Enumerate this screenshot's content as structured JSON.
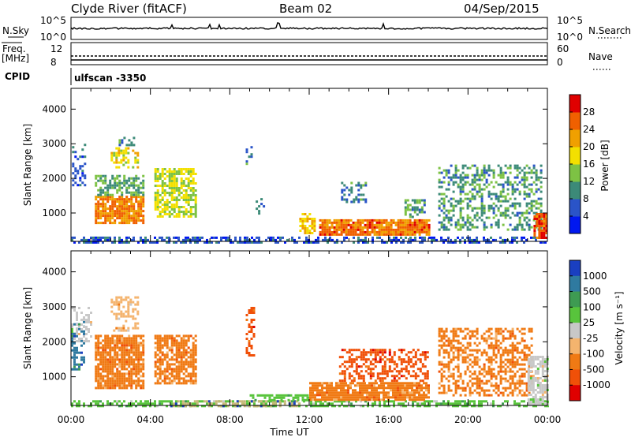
{
  "header": {
    "station": "Clyde River (fitACF)",
    "beam": "Beam 02",
    "date": "04/Sep/2015"
  },
  "top_panels": {
    "nsky_label": "N.Sky",
    "nsky_ticks": [
      "10^5",
      "10^0"
    ],
    "nsearch_label": "N.Search",
    "nsearch_ticks": [
      "10^5",
      "10^0"
    ],
    "freq_label_1": "Freq.",
    "freq_label_2": "[MHz]",
    "freq_ticks": [
      "12",
      "8"
    ],
    "nave_label": "Nave",
    "nave_ticks": [
      "60",
      "0"
    ],
    "cpid_label": "CPID",
    "cpid_value": "ulfscan -3350"
  },
  "chart_data": [
    {
      "type": "heatmap",
      "title": "",
      "xlabel": "Time UT",
      "ylabel": "Slant Range [km]",
      "xlim": [
        0,
        24
      ],
      "ylim": [
        180,
        4600
      ],
      "x_ticks": [
        "00:00",
        "04:00",
        "08:00",
        "12:00",
        "16:00",
        "20:00",
        "00:00"
      ],
      "y_ticks": [
        "1000",
        "2000",
        "3000",
        "4000"
      ],
      "y_tick_values": [
        1000,
        2000,
        3000,
        4000
      ],
      "colorbar": {
        "label": "Power [dB]",
        "ticks": [
          "4",
          "8",
          "12",
          "16",
          "20",
          "24",
          "28"
        ],
        "tick_values": [
          4,
          8,
          12,
          16,
          20,
          24,
          28
        ],
        "range": [
          0,
          32
        ],
        "colors": [
          "#0018f0",
          "#2a54c8",
          "#3c8a78",
          "#7dc244",
          "#f3e000",
          "#f0a000",
          "#f06000",
          "#e00000"
        ]
      },
      "regions": [
        {
          "t0": 0.0,
          "t1": 24.0,
          "r0": 180,
          "r1": 320,
          "value": 6,
          "density": 0.55
        },
        {
          "t0": 0.05,
          "t1": 0.7,
          "r0": 1800,
          "r1": 3000,
          "value": 7,
          "density": 0.35
        },
        {
          "t0": 1.2,
          "t1": 3.6,
          "r0": 700,
          "r1": 1500,
          "value": 24,
          "density": 0.85
        },
        {
          "t0": 1.2,
          "t1": 3.6,
          "r0": 1500,
          "r1": 2100,
          "value": 12,
          "density": 0.6
        },
        {
          "t0": 2.0,
          "t1": 3.4,
          "r0": 2300,
          "r1": 2900,
          "value": 18,
          "density": 0.5
        },
        {
          "t0": 2.4,
          "t1": 3.2,
          "r0": 2900,
          "r1": 3200,
          "value": 9,
          "density": 0.35
        },
        {
          "t0": 4.2,
          "t1": 6.3,
          "r0": 900,
          "r1": 2300,
          "value": 16,
          "density": 0.7
        },
        {
          "t0": 8.8,
          "t1": 9.1,
          "r0": 2400,
          "r1": 3000,
          "value": 9,
          "density": 0.4
        },
        {
          "t0": 9.3,
          "t1": 9.7,
          "r0": 1000,
          "r1": 1500,
          "value": 8,
          "density": 0.3
        },
        {
          "t0": 11.5,
          "t1": 12.3,
          "r0": 400,
          "r1": 1000,
          "value": 20,
          "density": 0.6
        },
        {
          "t0": 12.5,
          "t1": 18.0,
          "r0": 380,
          "r1": 820,
          "value": 25,
          "density": 0.9
        },
        {
          "t0": 13.6,
          "t1": 14.8,
          "r0": 1300,
          "r1": 1900,
          "value": 9,
          "density": 0.45
        },
        {
          "t0": 16.8,
          "t1": 17.8,
          "r0": 900,
          "r1": 1400,
          "value": 11,
          "density": 0.5
        },
        {
          "t0": 18.5,
          "t1": 23.7,
          "r0": 500,
          "r1": 2400,
          "value": 11,
          "density": 0.42
        },
        {
          "t0": 23.3,
          "t1": 24.0,
          "r0": 300,
          "r1": 1000,
          "value": 27,
          "density": 0.85
        }
      ]
    },
    {
      "type": "heatmap",
      "title": "",
      "xlabel": "Time UT",
      "ylabel": "Slant Range [km]",
      "xlim": [
        0,
        24
      ],
      "ylim": [
        180,
        4600
      ],
      "x_ticks": [
        "00:00",
        "04:00",
        "08:00",
        "12:00",
        "16:00",
        "20:00",
        "00:00"
      ],
      "y_ticks": [
        "1000",
        "2000",
        "3000",
        "4000"
      ],
      "y_tick_values": [
        1000,
        2000,
        3000,
        4000
      ],
      "colorbar": {
        "label": "Velocity [m s⁻¹]",
        "ticks": [
          "1000",
          "500",
          "100",
          "25",
          "-25",
          "-100",
          "-500",
          "-1000"
        ],
        "colors": [
          "#1a3fc0",
          "#2f7aa0",
          "#3e9b52",
          "#58c43c",
          "#c8c8c8",
          "#f4b46e",
          "#f07a14",
          "#f05008",
          "#e00000"
        ]
      },
      "regions": [
        {
          "t0": 0.0,
          "t1": 24.0,
          "r0": 180,
          "r1": 330,
          "value": "#58c43c",
          "density": 0.55
        },
        {
          "t0": 5.0,
          "t1": 11.5,
          "r0": 180,
          "r1": 330,
          "value": "#c8b878",
          "density": 0.55
        },
        {
          "t0": 0.0,
          "t1": 0.6,
          "r0": 1200,
          "r1": 2600,
          "value": "#2f7aa0",
          "density": 0.5
        },
        {
          "t0": 0.0,
          "t1": 1.0,
          "r0": 2000,
          "r1": 3000,
          "value": "#c8c8c8",
          "density": 0.4
        },
        {
          "t0": 1.2,
          "t1": 3.6,
          "r0": 700,
          "r1": 2200,
          "value": "#f07a14",
          "density": 0.85
        },
        {
          "t0": 2.0,
          "t1": 3.4,
          "r0": 2300,
          "r1": 3300,
          "value": "#f4b46e",
          "density": 0.45
        },
        {
          "t0": 4.2,
          "t1": 6.3,
          "r0": 800,
          "r1": 2200,
          "value": "#f07a14",
          "density": 0.75
        },
        {
          "t0": 8.8,
          "t1": 9.2,
          "r0": 1600,
          "r1": 3000,
          "value": "#f05008",
          "density": 0.4
        },
        {
          "t0": 9.0,
          "t1": 12.0,
          "r0": 300,
          "r1": 500,
          "value": "#58c43c",
          "density": 0.6
        },
        {
          "t0": 12.0,
          "t1": 18.0,
          "r0": 330,
          "r1": 850,
          "value": "#f07a14",
          "density": 0.88
        },
        {
          "t0": 13.5,
          "t1": 18.0,
          "r0": 900,
          "r1": 1800,
          "value": "#f05008",
          "density": 0.45
        },
        {
          "t0": 18.5,
          "t1": 23.2,
          "r0": 500,
          "r1": 2400,
          "value": "#f07a14",
          "density": 0.5
        },
        {
          "t0": 23.0,
          "t1": 24.0,
          "r0": 200,
          "r1": 1600,
          "value": "#c8c8c8",
          "density": 0.7
        }
      ]
    }
  ]
}
